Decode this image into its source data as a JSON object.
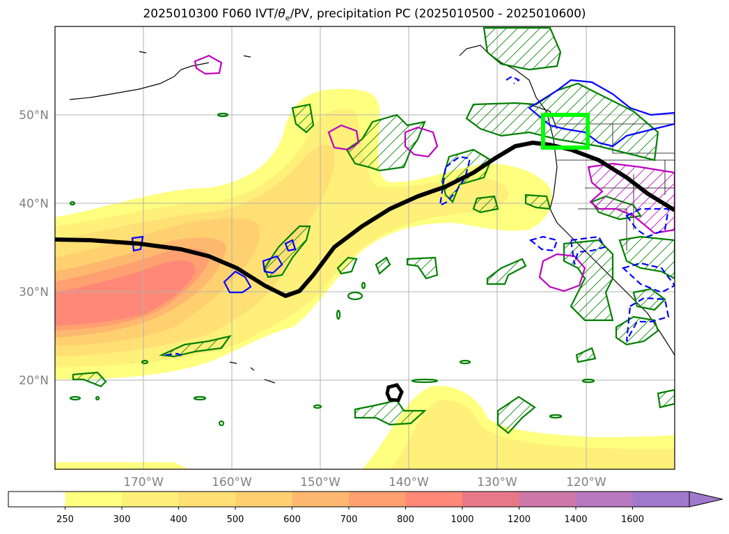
{
  "title": {
    "prefix": "2025010300 F060 IVT/",
    "theta_symbol": "θ",
    "theta_sub": "e",
    "suffix": "/PV, precipitation PC (2025010500 - 2025010600)"
  },
  "map": {
    "lat_labels": [
      "50°N",
      "40°N",
      "30°N",
      "20°N"
    ],
    "lon_labels": [
      "170°W",
      "160°W",
      "150°W",
      "140°W",
      "130°W",
      "120°W"
    ],
    "grid": true,
    "box_color": "#00ff00"
  },
  "colorbar": {
    "levels": [
      "250",
      "300",
      "400",
      "500",
      "600",
      "700",
      "800",
      "1000",
      "1200",
      "1400",
      "1600"
    ],
    "colors": [
      "#ffffff",
      "#ffff80",
      "#fff07a",
      "#ffe075",
      "#ffd070",
      "#ffb870",
      "#ffa070",
      "#ff8878",
      "#e87888",
      "#cc78a8",
      "#b878c0",
      "#a078cc"
    ],
    "extend": "max"
  },
  "legend_colors": {
    "contour_green": "#007f00",
    "contour_blue": "#0000ff",
    "contour_magenta": "#bf00bf",
    "pv_line": "#000000"
  }
}
